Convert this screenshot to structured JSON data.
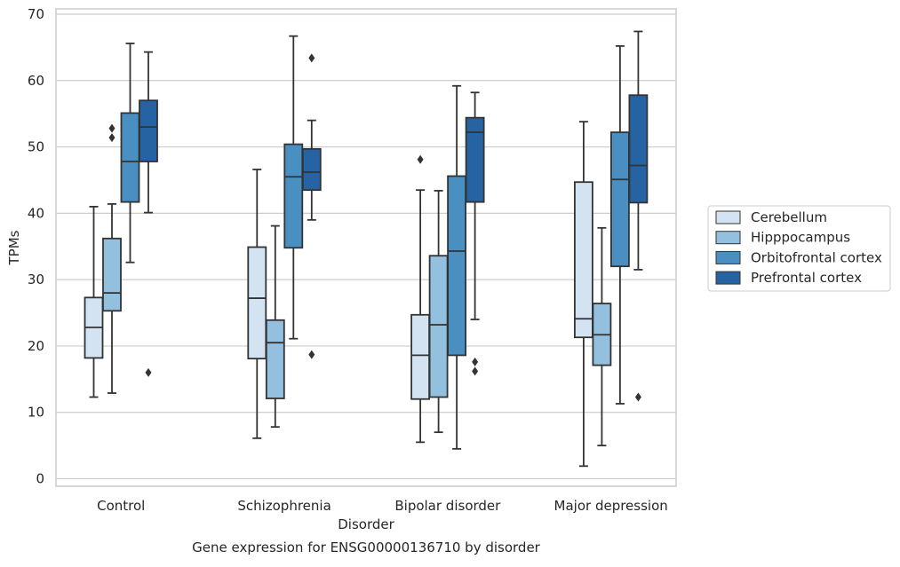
{
  "chart_data": {
    "type": "box",
    "title": "",
    "caption": "Gene expression for ENSG00000136710 by disorder",
    "xlabel": "Disorder",
    "ylabel": "TPMs",
    "ylim": [
      -1,
      71
    ],
    "yticks": [
      "0",
      "10",
      "20",
      "30",
      "40",
      "50",
      "60",
      "70"
    ],
    "categories": [
      "Control",
      "Schizophrenia",
      "Bipolar disorder",
      "Major depression"
    ],
    "grid": "horizontal",
    "legend_position": "right",
    "series": [
      {
        "name": "Cerebellum",
        "color": "#d3e3f2",
        "boxes": [
          {
            "whislo": 12.3,
            "q1": 18.2,
            "med": 22.8,
            "q3": 27.3,
            "whishi": 41.0,
            "fliers": []
          },
          {
            "whislo": 6.1,
            "q1": 18.1,
            "med": 27.2,
            "q3": 34.9,
            "whishi": 46.6,
            "fliers": []
          },
          {
            "whislo": 5.5,
            "q1": 12.0,
            "med": 18.6,
            "q3": 24.7,
            "whishi": 43.5,
            "fliers": [
              48.1
            ]
          },
          {
            "whislo": 1.9,
            "q1": 21.3,
            "med": 24.1,
            "q3": 44.7,
            "whishi": 53.8,
            "fliers": []
          }
        ]
      },
      {
        "name": "Hipppocampus",
        "color": "#94c0df",
        "boxes": [
          {
            "whislo": 12.9,
            "q1": 25.3,
            "med": 28.0,
            "q3": 36.2,
            "whishi": 41.4,
            "fliers": [
              52.8,
              51.4
            ]
          },
          {
            "whislo": 7.8,
            "q1": 12.1,
            "med": 20.5,
            "q3": 23.9,
            "whishi": 38.1,
            "fliers": []
          },
          {
            "whislo": 7.0,
            "q1": 12.3,
            "med": 23.2,
            "q3": 33.6,
            "whishi": 43.4,
            "fliers": []
          },
          {
            "whislo": 5.0,
            "q1": 17.1,
            "med": 21.7,
            "q3": 26.4,
            "whishi": 37.8,
            "fliers": []
          }
        ]
      },
      {
        "name": "Orbitofrontal cortex",
        "color": "#4a8fc1",
        "boxes": [
          {
            "whislo": 32.6,
            "q1": 41.7,
            "med": 47.8,
            "q3": 55.1,
            "whishi": 65.6,
            "fliers": []
          },
          {
            "whislo": 21.1,
            "q1": 34.8,
            "med": 45.5,
            "q3": 50.4,
            "whishi": 66.7,
            "fliers": []
          },
          {
            "whislo": 4.5,
            "q1": 18.6,
            "med": 34.3,
            "q3": 45.6,
            "whishi": 59.2,
            "fliers": []
          },
          {
            "whislo": 11.3,
            "q1": 32.0,
            "med": 45.1,
            "q3": 52.2,
            "whishi": 65.2,
            "fliers": []
          }
        ]
      },
      {
        "name": "Prefrontal cortex",
        "color": "#2563a3",
        "boxes": [
          {
            "whislo": 40.1,
            "q1": 47.8,
            "med": 53.0,
            "q3": 57.0,
            "whishi": 64.3,
            "fliers": [
              16.0
            ]
          },
          {
            "whislo": 39.0,
            "q1": 43.5,
            "med": 46.2,
            "q3": 49.7,
            "whishi": 54.0,
            "fliers": [
              63.4,
              18.7
            ]
          },
          {
            "whislo": 24.0,
            "q1": 41.7,
            "med": 52.2,
            "q3": 54.4,
            "whishi": 58.2,
            "fliers": [
              17.6,
              16.2
            ]
          },
          {
            "whislo": 31.5,
            "q1": 41.6,
            "med": 47.2,
            "q3": 57.8,
            "whishi": 67.4,
            "fliers": [
              12.3
            ]
          }
        ]
      }
    ]
  }
}
